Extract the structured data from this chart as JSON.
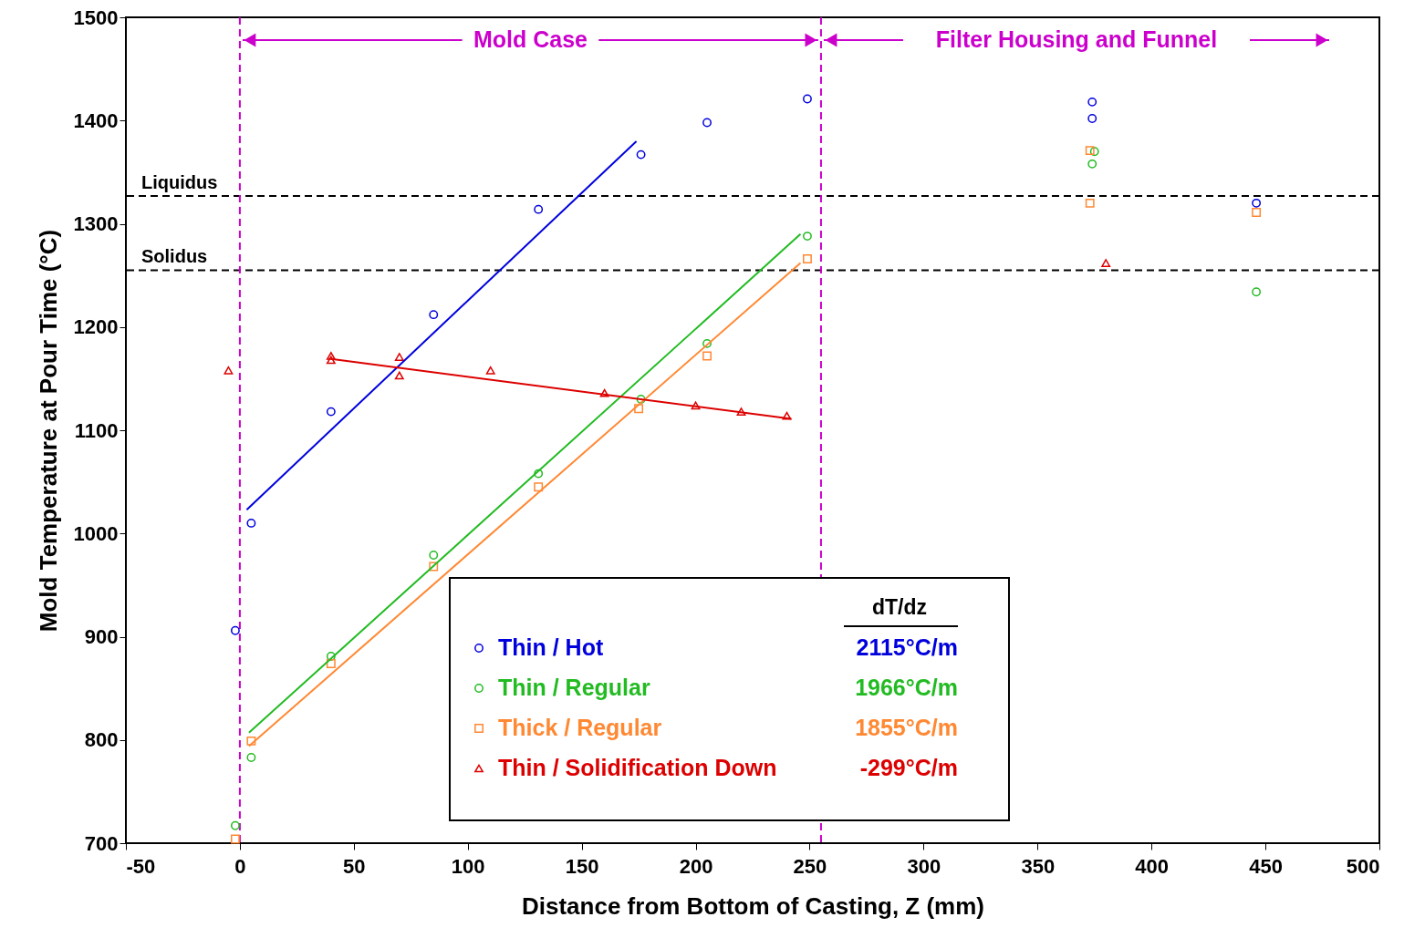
{
  "chart_data": {
    "type": "scatter",
    "xlabel": "Distance from Bottom of Casting, Z (mm)",
    "ylabel": "Mold Temperature at Pour Time (°C)",
    "xlim": [
      -50,
      500
    ],
    "ylim": [
      700,
      1500
    ],
    "xticks": [
      -50,
      0,
      50,
      100,
      150,
      200,
      250,
      300,
      350,
      400,
      450,
      500
    ],
    "yticks": [
      700,
      800,
      900,
      1000,
      1100,
      1200,
      1300,
      1400,
      1500
    ],
    "grid": false,
    "legend": "bottom",
    "legend_title": "dT/dz",
    "series": [
      {
        "name": "Thin / Hot",
        "color": "#0000dd",
        "marker": "circle",
        "x": [
          -2,
          5,
          40,
          85,
          131,
          176,
          205,
          249,
          374,
          374,
          446
        ],
        "values": [
          906,
          1010,
          1118,
          1212,
          1314,
          1367,
          1398,
          1421,
          1418,
          1402,
          1320
        ]
      },
      {
        "name": "Thin / Regular",
        "color": "#22bb22",
        "marker": "circle",
        "x": [
          -2,
          5,
          40,
          85,
          131,
          176,
          205,
          249,
          375,
          374,
          446
        ],
        "values": [
          717,
          783,
          881,
          979,
          1058,
          1130,
          1184,
          1288,
          1370,
          1358,
          1234
        ]
      },
      {
        "name": "Thick / Regular",
        "color": "#ff8833",
        "marker": "square",
        "x": [
          -2,
          5,
          40,
          85,
          131,
          175,
          205,
          249,
          373,
          373,
          446
        ],
        "values": [
          704,
          799,
          874,
          968,
          1045,
          1121,
          1172,
          1266,
          1371,
          1320,
          1311
        ]
      },
      {
        "name": "Thin / Solidification Down",
        "color": "#dd0000",
        "marker": "triangle",
        "x": [
          -5,
          40,
          40,
          70,
          70,
          110,
          160,
          200,
          220,
          240,
          380
        ],
        "values": [
          1158,
          1172,
          1168,
          1171,
          1153,
          1158,
          1136,
          1124,
          1118,
          1114,
          1262
        ]
      },
      {
        "type": "line",
        "color": "#0000dd",
        "x": [
          3,
          174
        ],
        "values": [
          1023,
          1380
        ]
      },
      {
        "type": "line",
        "color": "#22bb22",
        "x": [
          4,
          246
        ],
        "values": [
          807,
          1290
        ]
      },
      {
        "type": "line",
        "color": "#ff8833",
        "x": [
          4,
          246
        ],
        "values": [
          794,
          1262
        ]
      },
      {
        "type": "line",
        "color": "#dd0000",
        "x": [
          40,
          242
        ],
        "values": [
          1169,
          1111
        ]
      }
    ],
    "ref_lines": [
      {
        "axis": "y",
        "value": 1327,
        "label": "Liquidus",
        "color": "#000000",
        "line_style": "dashed"
      },
      {
        "axis": "y",
        "value": 1255,
        "label": "Solidus",
        "color": "#000000",
        "line_style": "dashed"
      },
      {
        "axis": "x",
        "value": 0,
        "color": "#cc00cc",
        "line_style": "dashed"
      },
      {
        "axis": "x",
        "value": 255,
        "color": "#cc00cc",
        "line_style": "dashed"
      }
    ],
    "annotations": [
      "Mold Case",
      "Filter Housing and Funnel",
      "2115°C/m",
      "1966°C/m",
      "1855°C/m",
      "-299°C/m"
    ]
  }
}
